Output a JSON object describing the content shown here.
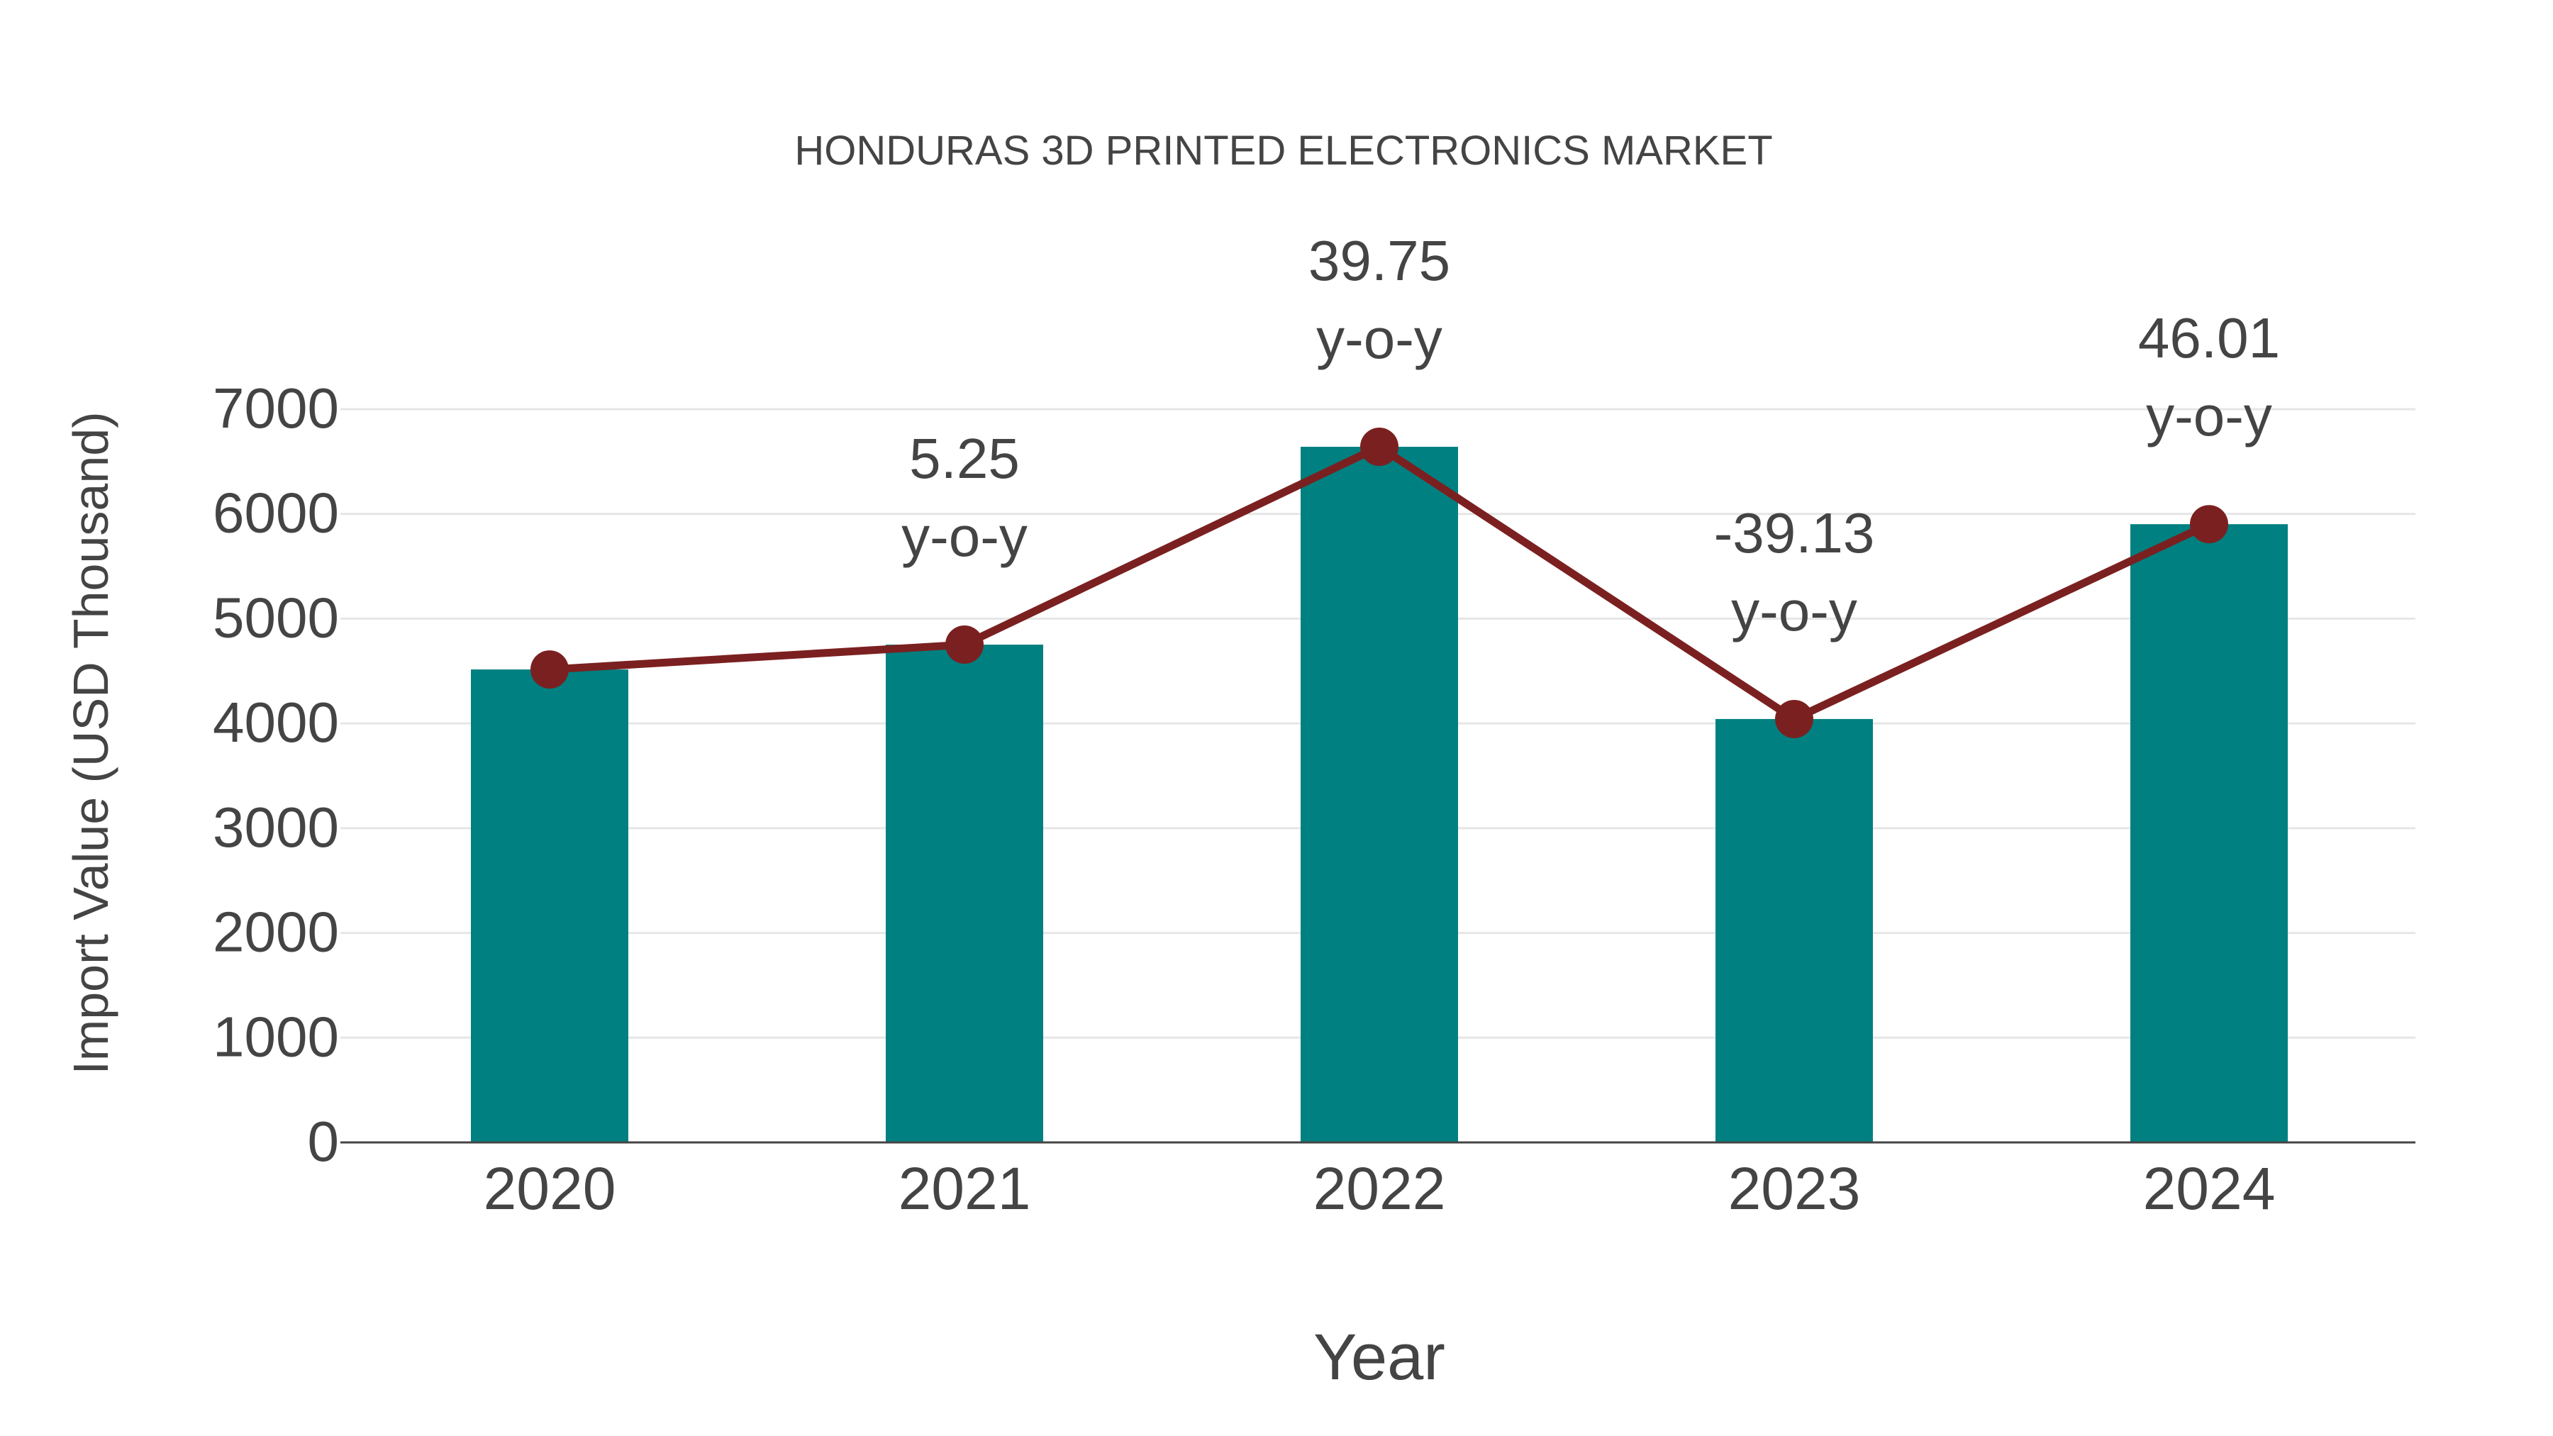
{
  "chart_data": {
    "type": "bar+line",
    "title": "HONDURAS 3D PRINTED ELECTRONICS MARKET",
    "xlabel": "Year",
    "ylabel": "Import Value (USD Thousand)",
    "categories": [
      "2020",
      "2021",
      "2022",
      "2023",
      "2024"
    ],
    "series": [
      {
        "name": "Import Value",
        "type": "bar",
        "color": "#008080",
        "values": [
          4515,
          4752,
          6641,
          4042,
          5902
        ]
      },
      {
        "name": "Trend",
        "type": "line",
        "color": "#7B2020",
        "values": [
          4515,
          4752,
          6641,
          4042,
          5902
        ]
      }
    ],
    "annotations": [
      {
        "x": "2021",
        "value": "5.25",
        "suffix": "y-o-y"
      },
      {
        "x": "2022",
        "value": "39.75",
        "suffix": "y-o-y"
      },
      {
        "x": "2023",
        "value": "-39.13",
        "suffix": "y-o-y"
      },
      {
        "x": "2024",
        "value": "46.01",
        "suffix": "y-o-y"
      }
    ],
    "yticks": [
      "0",
      "1000",
      "2000",
      "3000",
      "4000",
      "5000",
      "6000",
      "7000"
    ],
    "ylim": [
      0,
      7000
    ],
    "grid": true,
    "legend": "none"
  }
}
